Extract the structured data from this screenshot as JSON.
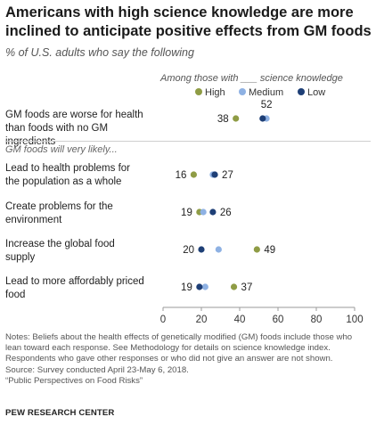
{
  "title": "Americans with high science knowledge are more inclined to anticipate positive effects from GM foods",
  "subtitle": "% of U.S. adults who say the following",
  "legend": {
    "title": "Among those with ___ science knowledge",
    "items": [
      {
        "label": "High",
        "color": "#8f9c45"
      },
      {
        "label": "Medium",
        "color": "#8eb1e3"
      },
      {
        "label": "Low",
        "color": "#1e3f76"
      }
    ]
  },
  "section_label": "GM foods will very likely...",
  "chart_data": {
    "type": "scatter",
    "xlim": [
      0,
      100
    ],
    "xticks": [
      "0",
      "20",
      "40",
      "60",
      "80",
      "100"
    ],
    "categories": [
      "GM foods are worse for health than foods with no GM ingredients",
      "Lead to health problems for the population as a whole",
      "Create problems for the environment",
      "Increase the global food supply",
      "Lead to more affordably priced food"
    ],
    "series": [
      {
        "name": "High",
        "values": [
          38,
          16,
          19,
          49,
          37
        ]
      },
      {
        "name": "Medium",
        "values": [
          54,
          26,
          21,
          29,
          22
        ]
      },
      {
        "name": "Low",
        "values": [
          52,
          27,
          26,
          20,
          19
        ]
      }
    ],
    "labels": [
      {
        "row": 0,
        "left": "38",
        "right": "",
        "top": "52"
      },
      {
        "row": 1,
        "left": "16",
        "right": "27",
        "top": ""
      },
      {
        "row": 2,
        "left": "19",
        "right": "26",
        "top": ""
      },
      {
        "row": 3,
        "left": "20",
        "right": "49",
        "top": ""
      },
      {
        "row": 4,
        "left": "19",
        "right": "37",
        "top": ""
      }
    ]
  },
  "row_labels": [
    [
      "GM foods are worse for health",
      "than foods with no GM ingredients"
    ],
    [
      "Lead to health problems for",
      "the population as a whole"
    ],
    [
      "Create problems for the",
      "environment"
    ],
    [
      "Increase the global food",
      "supply"
    ],
    [
      "Lead to more affordably priced",
      "food"
    ]
  ],
  "notes": [
    "Notes: Beliefs about the health effects of genetically modified (GM) foods include those who",
    "lean toward each response. See Methodology for details on science knowledge index.",
    "Respondents who gave other responses or who did not give an answer are not shown.",
    "Source: Survey conducted April 23-May 6, 2018.",
    "“Public Perspectives on Food Risks”"
  ],
  "brand": "PEW RESEARCH CENTER"
}
